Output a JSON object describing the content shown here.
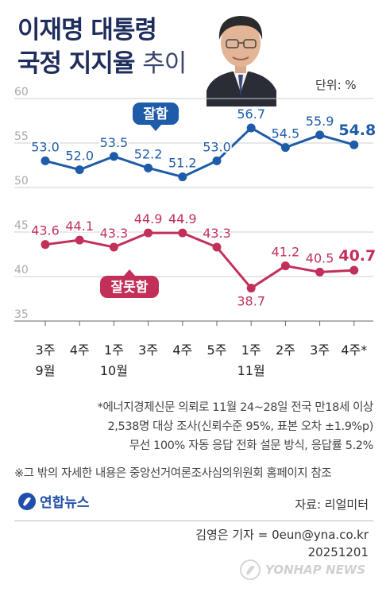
{
  "header": {
    "title_line1": "이재명 대통령",
    "title_line2_bold": "국정 지지율",
    "title_line2_light": "추이",
    "unit": "단위: %"
  },
  "chart_data": {
    "type": "line",
    "categories": [
      "3주",
      "4주",
      "1주",
      "3주",
      "4주",
      "5주",
      "1주",
      "2주",
      "3주",
      "4주*"
    ],
    "month_labels": [
      {
        "index": 0,
        "label": "9월"
      },
      {
        "index": 2,
        "label": "10월"
      },
      {
        "index": 6,
        "label": "11월"
      }
    ],
    "series": [
      {
        "name": "잘함",
        "values": [
          53.0,
          52.0,
          53.5,
          52.2,
          51.2,
          53.0,
          56.7,
          54.5,
          55.9,
          54.8
        ],
        "color": "#1e5ba8"
      },
      {
        "name": "잘못함",
        "values": [
          43.6,
          44.1,
          43.3,
          44.9,
          44.9,
          43.3,
          38.7,
          41.2,
          40.5,
          40.7
        ],
        "color": "#c2305a"
      }
    ],
    "y_ticks": [
      35,
      40,
      45,
      50,
      55,
      60
    ],
    "ylim": [
      35,
      60
    ],
    "grid": true,
    "legend": "inline labels"
  },
  "notes": {
    "lines": [
      "*에너지경제신문 의뢰로 11월 24~28일 전국 만18세 이상",
      "2,538명 대상 조사(신뢰수준 95%, 표본 오차 ±1.9%p)",
      "무선 100% 자동 응답 전화 설문 방식, 응답률 5.2%"
    ],
    "reference": "※그 밖의 자세한 내용은 중앙선거여론조사심의위원회 홈페이지 참조"
  },
  "footer": {
    "logo": "연합뉴스",
    "source": "자료: 리얼미터",
    "credit_line1": "김영은 기자 = 0eun@yna.co.kr",
    "credit_line2": "20251201",
    "watermark": "YONHAP NEWS"
  },
  "colors": {
    "title": "#1f2d5c",
    "positive": "#1e5ba8",
    "negative": "#c2305a",
    "grid": "#cfcfcf"
  }
}
